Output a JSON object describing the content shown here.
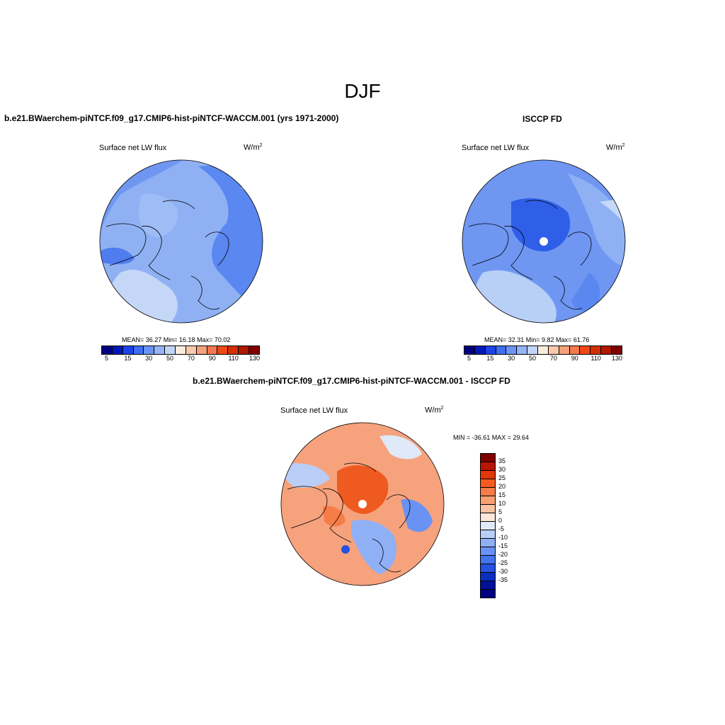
{
  "title": "DJF",
  "panel_left": {
    "title": "b.e21.BWaerchem-piNTCF.f09_g17.CMIP6-hist-piNTCF-WACCM.001 (yrs 1971-2000)",
    "variable": "Surface net LW flux",
    "unit_base": "W/m",
    "unit_exp": "2",
    "stats": "MEAN=  36.27  Min=  16.18  Max=  70.02"
  },
  "panel_right": {
    "title": "ISCCP FD",
    "variable": "Surface net LW flux",
    "unit_base": "W/m",
    "unit_exp": "2",
    "stats": "MEAN=  32.31  Min=   9.82  Max=  61.76"
  },
  "panel_diff": {
    "title": "b.e21.BWaerchem-piNTCF.f09_g17.CMIP6-hist-piNTCF-WACCM.001 - ISCCP FD",
    "variable": "Surface net LW flux",
    "unit_base": "W/m",
    "unit_exp": "2",
    "stats": "MIN = -36.61 MAX =  29.64"
  },
  "colorbar_abs": {
    "colors": [
      "#000080",
      "#0018b8",
      "#1d43e6",
      "#3f6ff2",
      "#6a93f5",
      "#93b5f7",
      "#c1d6f7",
      "#f8ecdc",
      "#f8c8aa",
      "#f5a07c",
      "#f47850",
      "#ee4a18",
      "#d43008",
      "#b01800",
      "#800000"
    ],
    "labels": [
      "5",
      "15",
      "30",
      "50",
      "70",
      "90",
      "110",
      "130"
    ]
  },
  "colorbar_diff": {
    "colors": [
      "#800000",
      "#b81600",
      "#e03808",
      "#f65a20",
      "#f67c48",
      "#f7a072",
      "#f8c3a2",
      "#fae8da",
      "#dfe9f7",
      "#b9cdf6",
      "#8fb0f5",
      "#6a92f2",
      "#4573ee",
      "#2552e0",
      "#0a2fc0",
      "#00109a",
      "#000080"
    ],
    "labels": [
      "35",
      "30",
      "25",
      "20",
      "15",
      "10",
      "5",
      "0",
      "-5",
      "-10",
      "-15",
      "-20",
      "-25",
      "-30",
      "-35"
    ]
  },
  "map_colors": {
    "base_left": "#8fb1f4",
    "base_right": "#6f97f2",
    "base_diff": "#f6a27c",
    "land_line": "#000000"
  }
}
